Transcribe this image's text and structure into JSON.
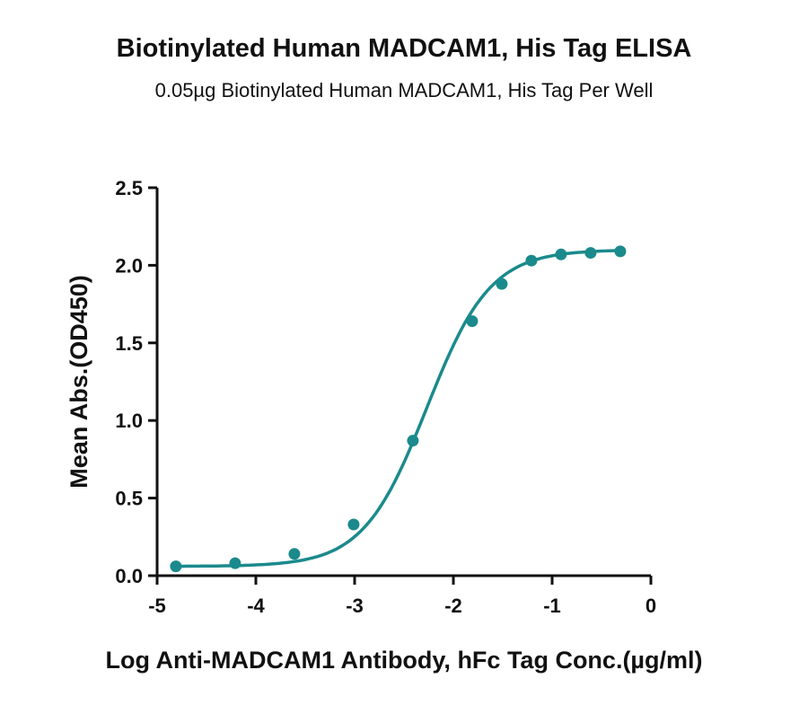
{
  "chart_data": {
    "type": "scatter",
    "title": "Biotinylated Human MADCAM1, His Tag ELISA",
    "subtitle": "0.05µg Biotinylated Human MADCAM1, His Tag Per Well",
    "xlabel": "Log Anti-MADCAM1 Antibody, hFc Tag Conc.(µg/ml)",
    "ylabel": "Mean Abs.(OD450)",
    "xlim": [
      -5,
      0
    ],
    "ylim": [
      0,
      2.5
    ],
    "xticks": [
      "-5",
      "-4",
      "-3",
      "-2",
      "-1",
      "0"
    ],
    "yticks": [
      "0.0",
      "0.5",
      "1.0",
      "1.5",
      "2.0",
      "2.5"
    ],
    "grid": false,
    "color": "#1b8a8c",
    "series": [
      {
        "x": [
          -4.81,
          -4.21,
          -3.61,
          -3.01,
          -2.41,
          -1.81,
          -1.51,
          -1.21,
          -0.91,
          -0.61,
          -0.31
        ],
        "y": [
          0.06,
          0.08,
          0.14,
          0.33,
          0.87,
          1.64,
          1.88,
          2.03,
          2.07,
          2.08,
          2.09
        ],
        "fit": "sigmoidal"
      }
    ]
  }
}
